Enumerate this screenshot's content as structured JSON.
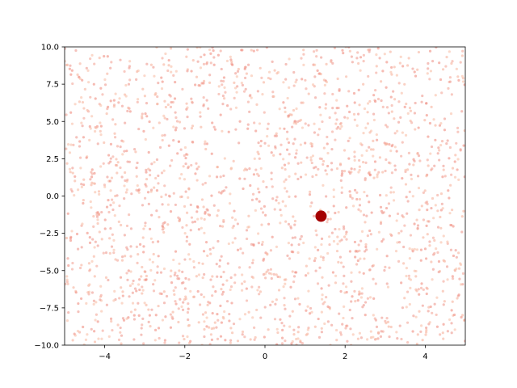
{
  "chart_data": {
    "type": "scatter",
    "title": "",
    "xlabel": "",
    "ylabel": "",
    "xlim": [
      -5,
      5
    ],
    "ylim": [
      -10,
      10
    ],
    "grid": false,
    "legend": "none",
    "x_ticks": [
      {
        "value": -4,
        "label": "−4"
      },
      {
        "value": -2,
        "label": "−2"
      },
      {
        "value": 0,
        "label": "0"
      },
      {
        "value": 2,
        "label": "2"
      },
      {
        "value": 4,
        "label": "4"
      }
    ],
    "y_ticks": [
      {
        "value": -10,
        "label": "−10.0"
      },
      {
        "value": -7.5,
        "label": "−7.5"
      },
      {
        "value": -5,
        "label": "−5.0"
      },
      {
        "value": -2.5,
        "label": "−2.5"
      },
      {
        "value": 0,
        "label": "0.0"
      },
      {
        "value": 2.5,
        "label": "2.5"
      },
      {
        "value": 5,
        "label": "5.0"
      },
      {
        "value": 7.5,
        "label": "7.5"
      },
      {
        "value": 10,
        "label": "10.0"
      }
    ],
    "background_points": {
      "count": 2000,
      "distribution": "uniform",
      "x_range": [
        -5,
        5
      ],
      "y_range": [
        -10,
        10
      ],
      "colors": [
        "#f4a79a",
        "#f08e80",
        "#f7b39c",
        "#ee9a90",
        "#f9bfa8"
      ],
      "opacity": 0.6
    },
    "highlight_point": {
      "x": 1.4,
      "y": -1.35,
      "color": "#a50000"
    }
  }
}
